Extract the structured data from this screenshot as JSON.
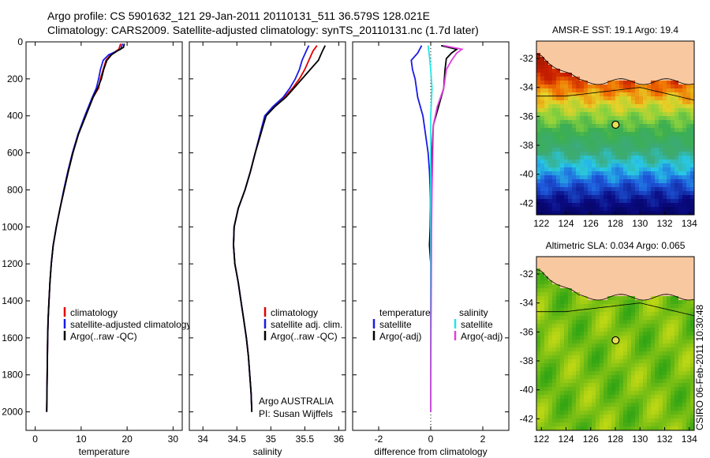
{
  "header": {
    "line1": "Argo profile: CS 5901632_121 29-Jan-2011 20110131_511 36.579S 128.021E",
    "line2": "Climatology: CARS2009. Satellite-adjusted climatology: synTS_20110131.nc (1.7d later)"
  },
  "credit": "CSIRO 06-Feb-2011 10:30:48",
  "colors": {
    "red": "#e00000",
    "blue": "#1a1ae6",
    "black": "#000000",
    "cyan": "#22e6e6",
    "magenta": "#e040e0",
    "land": "#f8c8a0"
  },
  "chart_data": [
    {
      "type": "line",
      "id": "temperature",
      "xlabel": "temperature",
      "ylabel": "",
      "xlim": [
        -2,
        32
      ],
      "ylim": [
        2100,
        0
      ],
      "xticks": [
        0,
        10,
        20,
        30
      ],
      "yticks": [
        0,
        200,
        400,
        600,
        800,
        1000,
        1200,
        1400,
        1600,
        1800,
        2000
      ],
      "legend": {
        "placement": "right-middle",
        "entries": [
          "climatology",
          "satellite-adjusted climatology",
          "Argo(..raw -QC)"
        ]
      },
      "series": [
        {
          "name": "climatology",
          "color": "red",
          "points": [
            [
              18.6,
              10
            ],
            [
              18.2,
              40
            ],
            [
              16.4,
              70
            ],
            [
              15.4,
              100
            ],
            [
              14.8,
              150
            ],
            [
              14.2,
              200
            ],
            [
              13.8,
              250
            ],
            [
              12.6,
              300
            ],
            [
              11.0,
              400
            ],
            [
              9.4,
              500
            ],
            [
              8.2,
              600
            ],
            [
              7.2,
              700
            ],
            [
              6.3,
              800
            ],
            [
              5.4,
              900
            ],
            [
              4.6,
              1000
            ],
            [
              3.9,
              1100
            ],
            [
              3.5,
              1200
            ],
            [
              3.2,
              1300
            ],
            [
              3.0,
              1400
            ],
            [
              2.8,
              1500
            ],
            [
              2.7,
              1600
            ],
            [
              2.6,
              1800
            ],
            [
              2.5,
              2000
            ]
          ]
        },
        {
          "name": "satellite-adjusted climatology",
          "color": "blue",
          "points": [
            [
              19.0,
              10
            ],
            [
              18.6,
              40
            ],
            [
              16.0,
              70
            ],
            [
              14.8,
              100
            ],
            [
              14.2,
              150
            ],
            [
              13.8,
              200
            ],
            [
              13.3,
              250
            ],
            [
              12.4,
              300
            ],
            [
              10.8,
              400
            ],
            [
              9.3,
              500
            ],
            [
              8.1,
              600
            ],
            [
              7.1,
              700
            ],
            [
              6.2,
              800
            ],
            [
              5.4,
              900
            ],
            [
              4.6,
              1000
            ],
            [
              3.9,
              1100
            ],
            [
              3.5,
              1200
            ],
            [
              3.2,
              1300
            ],
            [
              3.0,
              1400
            ],
            [
              2.8,
              1500
            ],
            [
              2.7,
              1600
            ],
            [
              2.6,
              1800
            ],
            [
              2.5,
              2000
            ]
          ]
        },
        {
          "name": "Argo(..raw -QC)",
          "color": "black",
          "points": [
            [
              19.4,
              10
            ],
            [
              19.2,
              30
            ],
            [
              17.8,
              50
            ],
            [
              16.6,
              70
            ],
            [
              15.6,
              100
            ],
            [
              14.9,
              150
            ],
            [
              14.4,
              200
            ],
            [
              13.6,
              250
            ],
            [
              12.6,
              300
            ],
            [
              11.0,
              400
            ],
            [
              9.4,
              500
            ],
            [
              8.2,
              600
            ],
            [
              7.2,
              700
            ],
            [
              6.3,
              800
            ],
            [
              5.4,
              900
            ],
            [
              4.6,
              1000
            ],
            [
              3.9,
              1100
            ],
            [
              3.5,
              1200
            ],
            [
              3.2,
              1300
            ],
            [
              3.0,
              1400
            ],
            [
              2.8,
              1500
            ],
            [
              2.7,
              1600
            ],
            [
              2.6,
              1800
            ],
            [
              2.5,
              2000
            ]
          ]
        }
      ]
    },
    {
      "type": "line",
      "id": "salinity",
      "xlabel": "salinity",
      "ylabel": "",
      "xlim": [
        33.8,
        36.1
      ],
      "ylim": [
        2100,
        0
      ],
      "xticks": [
        34,
        34.5,
        35,
        35.5,
        36
      ],
      "xtick_labels": [
        "34",
        "34.5",
        "35",
        "35.5",
        "36"
      ],
      "legend": {
        "placement": "right-middle",
        "entries": [
          "climatology",
          "satellite adj. clim.",
          "Argo(..raw -QC)"
        ]
      },
      "annotations": [
        "Argo AUSTRALIA",
        "PI: Susan Wijffels"
      ],
      "series": [
        {
          "name": "climatology",
          "color": "red",
          "points": [
            [
              35.68,
              20
            ],
            [
              35.62,
              50
            ],
            [
              35.56,
              100
            ],
            [
              35.5,
              150
            ],
            [
              35.42,
              200
            ],
            [
              35.32,
              250
            ],
            [
              35.2,
              300
            ],
            [
              35.04,
              350
            ],
            [
              34.92,
              400
            ],
            [
              34.85,
              500
            ],
            [
              34.77,
              600
            ],
            [
              34.7,
              700
            ],
            [
              34.62,
              800
            ],
            [
              34.52,
              900
            ],
            [
              34.46,
              1000
            ],
            [
              34.45,
              1100
            ],
            [
              34.47,
              1200
            ],
            [
              34.52,
              1300
            ],
            [
              34.56,
              1400
            ],
            [
              34.6,
              1500
            ],
            [
              34.64,
              1600
            ],
            [
              34.67,
              1700
            ],
            [
              34.69,
              1800
            ],
            [
              34.71,
              1900
            ],
            [
              34.72,
              2000
            ]
          ]
        },
        {
          "name": "satellite adj. clim.",
          "color": "blue",
          "points": [
            [
              35.56,
              20
            ],
            [
              35.52,
              50
            ],
            [
              35.46,
              100
            ],
            [
              35.42,
              150
            ],
            [
              35.36,
              200
            ],
            [
              35.28,
              250
            ],
            [
              35.18,
              300
            ],
            [
              35.03,
              350
            ],
            [
              34.91,
              400
            ],
            [
              34.84,
              500
            ],
            [
              34.77,
              600
            ],
            [
              34.7,
              700
            ],
            [
              34.62,
              800
            ],
            [
              34.52,
              900
            ],
            [
              34.46,
              1000
            ],
            [
              34.45,
              1100
            ],
            [
              34.47,
              1200
            ],
            [
              34.52,
              1300
            ],
            [
              34.56,
              1400
            ],
            [
              34.6,
              1500
            ],
            [
              34.64,
              1600
            ],
            [
              34.67,
              1700
            ],
            [
              34.69,
              1800
            ],
            [
              34.71,
              1900
            ],
            [
              34.72,
              2000
            ]
          ]
        },
        {
          "name": "Argo(..raw -QC)",
          "color": "black",
          "points": [
            [
              35.8,
              20
            ],
            [
              35.76,
              50
            ],
            [
              35.7,
              100
            ],
            [
              35.58,
              150
            ],
            [
              35.46,
              200
            ],
            [
              35.34,
              250
            ],
            [
              35.22,
              300
            ],
            [
              35.06,
              350
            ],
            [
              34.93,
              400
            ],
            [
              34.85,
              500
            ],
            [
              34.77,
              600
            ],
            [
              34.7,
              700
            ],
            [
              34.62,
              800
            ],
            [
              34.52,
              900
            ],
            [
              34.46,
              1000
            ],
            [
              34.45,
              1100
            ],
            [
              34.47,
              1200
            ],
            [
              34.52,
              1300
            ],
            [
              34.56,
              1400
            ],
            [
              34.6,
              1500
            ],
            [
              34.64,
              1600
            ],
            [
              34.67,
              1700
            ],
            [
              34.69,
              1800
            ],
            [
              34.71,
              1900
            ],
            [
              34.72,
              2000
            ]
          ]
        }
      ]
    },
    {
      "type": "line",
      "id": "difference",
      "xlabel": "difference from climatology",
      "ylabel": "",
      "xlim": [
        -3.0,
        3.0
      ],
      "ylim": [
        2100,
        0
      ],
      "xticks": [
        -2,
        0,
        2
      ],
      "legend": {
        "placement": "bottom-middle",
        "group_titles": [
          "temperature",
          "salinity"
        ],
        "entries": [
          "satellite",
          "Argo(-adj)",
          "satellite",
          "Argo(-adj)"
        ]
      },
      "series": [
        {
          "name": "temperature satellite",
          "color": "blue",
          "points": [
            [
              -0.35,
              20
            ],
            [
              -0.5,
              60
            ],
            [
              -0.75,
              100
            ],
            [
              -0.7,
              150
            ],
            [
              -0.6,
              200
            ],
            [
              -0.5,
              300
            ],
            [
              -0.3,
              400
            ],
            [
              -0.2,
              500
            ],
            [
              -0.1,
              600
            ],
            [
              -0.05,
              700
            ],
            [
              -0.02,
              800
            ],
            [
              0,
              900
            ],
            [
              0,
              2000
            ]
          ]
        },
        {
          "name": "temperature Argo(-adj)",
          "color": "black",
          "points": [
            [
              0.4,
              20
            ],
            [
              1.0,
              40
            ],
            [
              0.8,
              60
            ],
            [
              0.6,
              90
            ],
            [
              0.55,
              150
            ],
            [
              0.5,
              250
            ],
            [
              0.3,
              350
            ],
            [
              0.1,
              450
            ],
            [
              0.05,
              600
            ],
            [
              0.0,
              800
            ],
            [
              -0.02,
              1000
            ],
            [
              -0.05,
              1100
            ],
            [
              0,
              1200
            ],
            [
              0,
              2000
            ]
          ]
        },
        {
          "name": "salinity satellite",
          "color": "cyan",
          "points": [
            [
              -0.1,
              20
            ],
            [
              -0.05,
              80
            ],
            [
              0.0,
              150
            ],
            [
              0.05,
              250
            ],
            [
              0.0,
              400
            ],
            [
              0.0,
              800
            ],
            [
              0.0,
              2000
            ]
          ]
        },
        {
          "name": "salinity Argo(-adj)",
          "color": "magenta",
          "points": [
            [
              0.5,
              20
            ],
            [
              1.2,
              40
            ],
            [
              1.0,
              60
            ],
            [
              0.8,
              100
            ],
            [
              0.6,
              150
            ],
            [
              0.5,
              250
            ],
            [
              0.25,
              350
            ],
            [
              0.1,
              450
            ],
            [
              0.08,
              600
            ],
            [
              0.05,
              800
            ],
            [
              0.03,
              1000
            ],
            [
              0.02,
              1300
            ],
            [
              0.01,
              1600
            ],
            [
              0.0,
              2000
            ]
          ]
        }
      ]
    },
    {
      "type": "heatmap",
      "id": "sst-map",
      "title": "AMSR-E SST: 19.1 Argo: 19.4",
      "xlim": [
        121.6,
        134.4
      ],
      "ylim": [
        -42.8,
        -30.8
      ],
      "xticks": [
        122,
        124,
        126,
        128,
        130,
        132,
        134
      ],
      "yticks": [
        -32,
        -34,
        -36,
        -38,
        -40,
        -42
      ],
      "marker": {
        "lon": 128.021,
        "lat": -36.579
      }
    },
    {
      "type": "heatmap",
      "id": "sla-map",
      "title": "Altimetric SLA: 0.034 Argo: 0.065",
      "xlim": [
        121.6,
        134.4
      ],
      "ylim": [
        -42.8,
        -30.8
      ],
      "xticks": [
        122,
        124,
        126,
        128,
        130,
        132,
        134
      ],
      "yticks": [
        -32,
        -34,
        -36,
        -38,
        -40,
        -42
      ],
      "marker": {
        "lon": 128.021,
        "lat": -36.579
      }
    }
  ]
}
